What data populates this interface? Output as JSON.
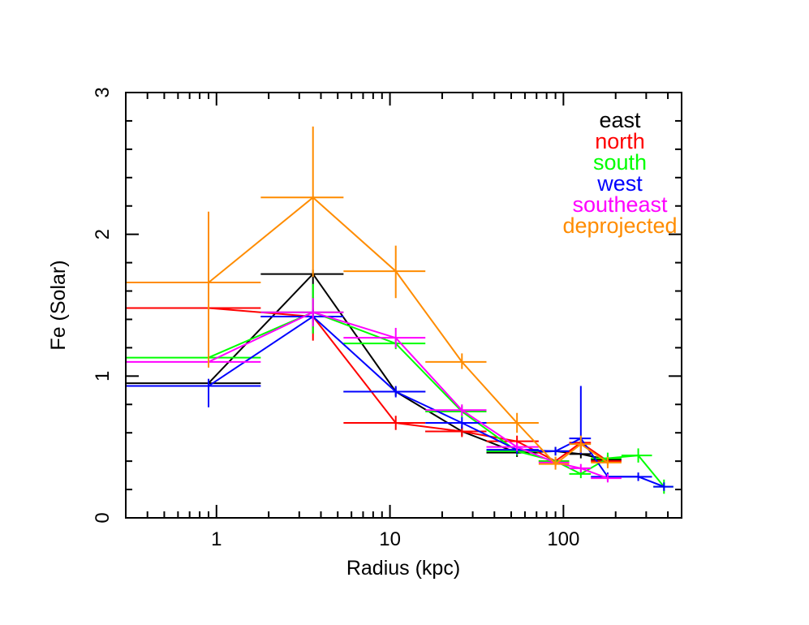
{
  "chart_data": {
    "type": "line",
    "xlabel": "Radius (kpc)",
    "ylabel": "Fe (Solar)",
    "x_scale": "log",
    "xlim": [
      0.3,
      480
    ],
    "ylim": [
      0,
      3
    ],
    "xticks": [
      {
        "value": 1,
        "label": "1"
      },
      {
        "value": 10,
        "label": "10"
      },
      {
        "value": 100,
        "label": "100"
      }
    ],
    "yticks": [
      {
        "value": 0,
        "label": "0"
      },
      {
        "value": 1,
        "label": "1"
      },
      {
        "value": 2,
        "label": "2"
      },
      {
        "value": 3,
        "label": "3"
      }
    ],
    "legend_position": "top-right",
    "grid": false,
    "series": [
      {
        "name": "east",
        "color": "#000000",
        "points": [
          {
            "x": 0.9,
            "y": 0.95,
            "xlo": 0.3,
            "xhi": 1.8,
            "ylo": 0.92,
            "yhi": 0.98
          },
          {
            "x": 3.6,
            "y": 1.72,
            "xlo": 1.8,
            "xhi": 5.4,
            "ylo": 1.3,
            "yhi": 1.75
          },
          {
            "x": 10.8,
            "y": 0.89,
            "xlo": 5.4,
            "xhi": 16,
            "ylo": 0.86,
            "yhi": 0.92
          },
          {
            "x": 26,
            "y": 0.61,
            "xlo": 16,
            "xhi": 36,
            "ylo": 0.58,
            "yhi": 0.64
          },
          {
            "x": 54,
            "y": 0.46,
            "xlo": 36,
            "xhi": 72,
            "ylo": 0.43,
            "yhi": 0.49
          },
          {
            "x": 90,
            "y": 0.47,
            "xlo": 72,
            "xhi": 108,
            "ylo": 0.44,
            "yhi": 0.5
          },
          {
            "x": 126,
            "y": 0.45,
            "xlo": 108,
            "xhi": 144,
            "ylo": 0.42,
            "yhi": 0.48
          },
          {
            "x": 180,
            "y": 0.41,
            "xlo": 144,
            "xhi": 216,
            "ylo": 0.38,
            "yhi": 0.44
          }
        ]
      },
      {
        "name": "north",
        "color": "#ff0000",
        "points": [
          {
            "x": 0.9,
            "y": 1.48,
            "xlo": 0.3,
            "xhi": 1.8,
            "ylo": 1.45,
            "yhi": 1.51
          },
          {
            "x": 3.6,
            "y": 1.42,
            "xlo": 1.8,
            "xhi": 5.4,
            "ylo": 1.25,
            "yhi": 1.48
          },
          {
            "x": 10.8,
            "y": 0.67,
            "xlo": 5.4,
            "xhi": 16,
            "ylo": 0.62,
            "yhi": 0.72
          },
          {
            "x": 26,
            "y": 0.61,
            "xlo": 16,
            "xhi": 36,
            "ylo": 0.57,
            "yhi": 0.65
          },
          {
            "x": 54,
            "y": 0.54,
            "xlo": 36,
            "xhi": 72,
            "ylo": 0.5,
            "yhi": 0.58
          },
          {
            "x": 90,
            "y": 0.4,
            "xlo": 72,
            "xhi": 108,
            "ylo": 0.37,
            "yhi": 0.43
          },
          {
            "x": 126,
            "y": 0.53,
            "xlo": 108,
            "xhi": 144,
            "ylo": 0.49,
            "yhi": 0.57
          },
          {
            "x": 180,
            "y": 0.4,
            "xlo": 144,
            "xhi": 216,
            "ylo": 0.37,
            "yhi": 0.43
          }
        ]
      },
      {
        "name": "south",
        "color": "#00ff00",
        "points": [
          {
            "x": 0.9,
            "y": 1.13,
            "xlo": 0.3,
            "xhi": 1.8,
            "ylo": 1.1,
            "yhi": 1.16
          },
          {
            "x": 3.6,
            "y": 1.45,
            "xlo": 1.8,
            "xhi": 5.4,
            "ylo": 1.3,
            "yhi": 1.65
          },
          {
            "x": 10.8,
            "y": 1.23,
            "xlo": 5.4,
            "xhi": 16,
            "ylo": 1.19,
            "yhi": 1.27
          },
          {
            "x": 26,
            "y": 0.75,
            "xlo": 16,
            "xhi": 36,
            "ylo": 0.71,
            "yhi": 0.79
          },
          {
            "x": 54,
            "y": 0.47,
            "xlo": 36,
            "xhi": 72,
            "ylo": 0.44,
            "yhi": 0.5
          },
          {
            "x": 90,
            "y": 0.4,
            "xlo": 72,
            "xhi": 108,
            "ylo": 0.37,
            "yhi": 0.43
          },
          {
            "x": 126,
            "y": 0.31,
            "xlo": 108,
            "xhi": 144,
            "ylo": 0.28,
            "yhi": 0.34
          },
          {
            "x": 180,
            "y": 0.42,
            "xlo": 144,
            "xhi": 216,
            "ylo": 0.38,
            "yhi": 0.46
          },
          {
            "x": 270,
            "y": 0.44,
            "xlo": 216,
            "xhi": 324,
            "ylo": 0.39,
            "yhi": 0.49
          },
          {
            "x": 380,
            "y": 0.22,
            "xlo": 330,
            "xhi": 430,
            "ylo": 0.17,
            "yhi": 0.27
          }
        ]
      },
      {
        "name": "west",
        "color": "#0000ff",
        "points": [
          {
            "x": 0.9,
            "y": 0.93,
            "xlo": 0.3,
            "xhi": 1.8,
            "ylo": 0.78,
            "yhi": 0.98
          },
          {
            "x": 3.6,
            "y": 1.42,
            "xlo": 1.8,
            "xhi": 5.4,
            "ylo": 1.38,
            "yhi": 1.47
          },
          {
            "x": 10.8,
            "y": 0.89,
            "xlo": 5.4,
            "xhi": 16,
            "ylo": 0.85,
            "yhi": 0.93
          },
          {
            "x": 26,
            "y": 0.67,
            "xlo": 16,
            "xhi": 36,
            "ylo": 0.63,
            "yhi": 0.71
          },
          {
            "x": 54,
            "y": 0.48,
            "xlo": 36,
            "xhi": 72,
            "ylo": 0.45,
            "yhi": 0.51
          },
          {
            "x": 90,
            "y": 0.47,
            "xlo": 72,
            "xhi": 108,
            "ylo": 0.44,
            "yhi": 0.5
          },
          {
            "x": 126,
            "y": 0.56,
            "xlo": 108,
            "xhi": 144,
            "ylo": 0.45,
            "yhi": 0.93
          },
          {
            "x": 180,
            "y": 0.29,
            "xlo": 144,
            "xhi": 216,
            "ylo": 0.26,
            "yhi": 0.32
          },
          {
            "x": 270,
            "y": 0.29,
            "xlo": 216,
            "xhi": 324,
            "ylo": 0.26,
            "yhi": 0.32
          },
          {
            "x": 380,
            "y": 0.22,
            "xlo": 330,
            "xhi": 430,
            "ylo": 0.19,
            "yhi": 0.25
          }
        ]
      },
      {
        "name": "southeast",
        "color": "#ff00ff",
        "points": [
          {
            "x": 0.9,
            "y": 1.1,
            "xlo": 0.3,
            "xhi": 1.8,
            "ylo": 1.07,
            "yhi": 1.13
          },
          {
            "x": 3.6,
            "y": 1.45,
            "xlo": 1.8,
            "xhi": 5.4,
            "ylo": 1.35,
            "yhi": 1.55
          },
          {
            "x": 10.8,
            "y": 1.27,
            "xlo": 5.4,
            "xhi": 16,
            "ylo": 1.2,
            "yhi": 1.34
          },
          {
            "x": 26,
            "y": 0.76,
            "xlo": 16,
            "xhi": 36,
            "ylo": 0.72,
            "yhi": 0.8
          },
          {
            "x": 54,
            "y": 0.5,
            "xlo": 36,
            "xhi": 72,
            "ylo": 0.47,
            "yhi": 0.53
          },
          {
            "x": 90,
            "y": 0.39,
            "xlo": 72,
            "xhi": 108,
            "ylo": 0.36,
            "yhi": 0.42
          },
          {
            "x": 126,
            "y": 0.35,
            "xlo": 108,
            "xhi": 144,
            "ylo": 0.32,
            "yhi": 0.38
          },
          {
            "x": 180,
            "y": 0.28,
            "xlo": 144,
            "xhi": 216,
            "ylo": 0.25,
            "yhi": 0.31
          }
        ]
      },
      {
        "name": "deprojected",
        "color": "#ff8c00",
        "points": [
          {
            "x": 0.9,
            "y": 1.66,
            "xlo": 0.3,
            "xhi": 1.8,
            "ylo": 1.06,
            "yhi": 2.16
          },
          {
            "x": 3.6,
            "y": 2.26,
            "xlo": 1.8,
            "xhi": 5.4,
            "ylo": 1.7,
            "yhi": 2.76
          },
          {
            "x": 10.8,
            "y": 1.74,
            "xlo": 5.4,
            "xhi": 16,
            "ylo": 1.55,
            "yhi": 1.92
          },
          {
            "x": 26,
            "y": 1.1,
            "xlo": 16,
            "xhi": 36,
            "ylo": 1.05,
            "yhi": 1.16
          },
          {
            "x": 54,
            "y": 0.67,
            "xlo": 36,
            "xhi": 72,
            "ylo": 0.6,
            "yhi": 0.74
          },
          {
            "x": 90,
            "y": 0.38,
            "xlo": 72,
            "xhi": 108,
            "ylo": 0.34,
            "yhi": 0.43
          },
          {
            "x": 126,
            "y": 0.52,
            "xlo": 108,
            "xhi": 144,
            "ylo": 0.46,
            "yhi": 0.58
          },
          {
            "x": 180,
            "y": 0.39,
            "xlo": 144,
            "xhi": 216,
            "ylo": 0.35,
            "yhi": 0.43
          }
        ]
      }
    ]
  }
}
